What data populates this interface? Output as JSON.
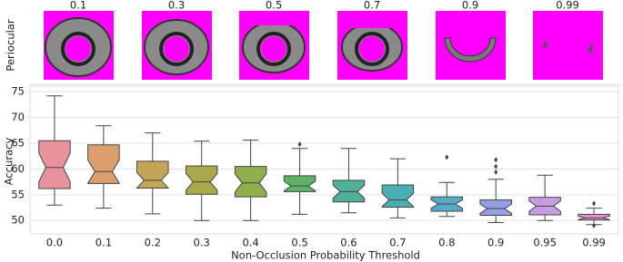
{
  "images": {
    "ylabel": "Periocular",
    "labels": [
      "0.1",
      "0.3",
      "0.5",
      "0.7",
      "0.9",
      "0.99"
    ]
  },
  "chart_data": {
    "type": "box",
    "xlabel": "Non-Occlusion Probability Threshold",
    "ylabel": "Accuracy",
    "categories": [
      "0.0",
      "0.1",
      "0.2",
      "0.3",
      "0.4",
      "0.5",
      "0.6",
      "0.7",
      "0.8",
      "0.9",
      "0.95",
      "0.99"
    ],
    "boxes": [
      {
        "low": 53,
        "q1": 56.2,
        "median": 60.3,
        "q3": 65.5,
        "high": 74.2,
        "outliers": [],
        "color": "#e8939b"
      },
      {
        "low": 52.4,
        "q1": 57.2,
        "median": 59.5,
        "q3": 64.7,
        "high": 68.4,
        "outliers": [],
        "color": "#dc9e6c"
      },
      {
        "low": 51.3,
        "q1": 56.3,
        "median": 57.8,
        "q3": 61.5,
        "high": 67,
        "outliers": [],
        "color": "#c4a558"
      },
      {
        "low": 50,
        "q1": 55.1,
        "median": 57.5,
        "q3": 60.6,
        "high": 65.4,
        "outliers": [],
        "color": "#aaa84a"
      },
      {
        "low": 50,
        "q1": 54.6,
        "median": 57.3,
        "q3": 60.5,
        "high": 65.6,
        "outliers": [],
        "color": "#8fae4c"
      },
      {
        "low": 51.2,
        "q1": 55.6,
        "median": 56.7,
        "q3": 58.7,
        "high": 64,
        "outliers": [
          64.8
        ],
        "color": "#5cb267"
      },
      {
        "low": 51.5,
        "q1": 53.6,
        "median": 55.6,
        "q3": 57.8,
        "high": 64,
        "outliers": [],
        "color": "#50b09a"
      },
      {
        "low": 50.5,
        "q1": 52.6,
        "median": 54,
        "q3": 56.9,
        "high": 62,
        "outliers": [],
        "color": "#4aaeb2"
      },
      {
        "low": 50.8,
        "q1": 51.8,
        "median": 53.2,
        "q3": 54.6,
        "high": 57.4,
        "outliers": [
          62.3
        ],
        "color": "#58a8cc"
      },
      {
        "low": 49.6,
        "q1": 51,
        "median": 52.3,
        "q3": 54,
        "high": 58,
        "outliers": [
          61.8,
          60.5,
          59.4
        ],
        "color": "#93a0e2"
      },
      {
        "low": 50,
        "q1": 51.1,
        "median": 52.8,
        "q3": 54.5,
        "high": 58.8,
        "outliers": [],
        "color": "#c89ce2"
      },
      {
        "low": 49.2,
        "q1": 50.1,
        "median": 50.5,
        "q3": 51.2,
        "high": 52.4,
        "outliers": [
          53.3,
          49
        ],
        "color": "#e690d0"
      }
    ],
    "ylim": [
      47.4,
      76.1
    ],
    "yticks": [
      50,
      55,
      60,
      65,
      70,
      75
    ],
    "grid": true
  }
}
